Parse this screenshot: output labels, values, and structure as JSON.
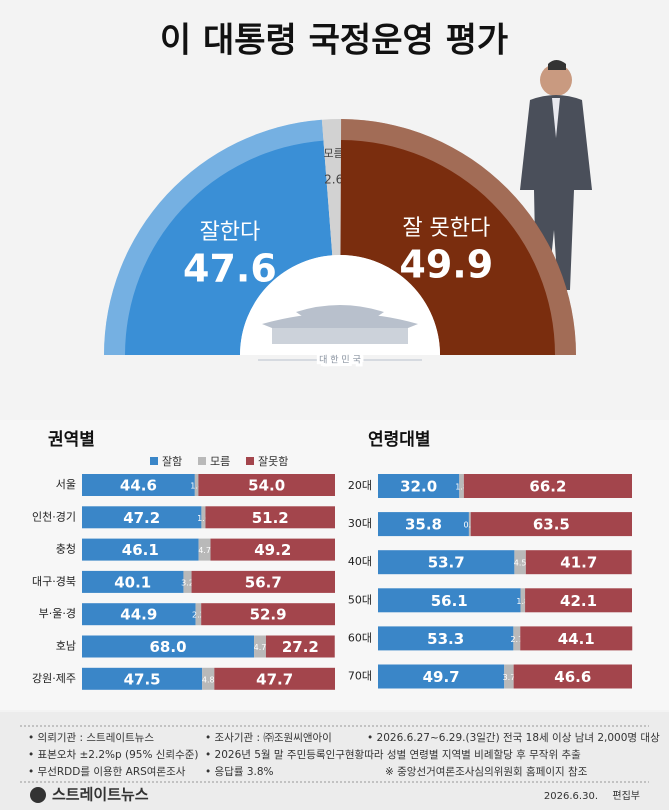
{
  "chart_data": [
    {
      "type": "pie",
      "half": true,
      "title": "이 대통령 국정운영 평가",
      "categories": [
        "잘한다",
        "모름",
        "잘 못한다"
      ],
      "values": [
        47.6,
        2.6,
        49.9
      ],
      "colors": [
        "#3a8fd6",
        "#d2d2d2",
        "#7a2d0e"
      ]
    },
    {
      "type": "bar",
      "orientation": "horizontal",
      "stacked": true,
      "title": "권역별",
      "categories": [
        "서울",
        "인천·경기",
        "충청",
        "대구·경북",
        "부·울·경",
        "호남",
        "강원·제주"
      ],
      "series": [
        {
          "name": "잘함",
          "color": "#3a86c8",
          "values": [
            44.6,
            47.2,
            46.1,
            40.1,
            44.9,
            68.0,
            47.5
          ],
          "value_labels": [
            "44.6",
            "47.2",
            "46.1",
            "40.1",
            "44.9",
            "68.0",
            "47.5"
          ]
        },
        {
          "name": "모름",
          "color": "#b9b9b9",
          "values": [
            1.4,
            1.6,
            4.7,
            3.2,
            2.2,
            4.7,
            4.8
          ]
        },
        {
          "name": "잘못함",
          "color": "#a3454c",
          "values": [
            54.0,
            51.2,
            49.2,
            56.7,
            52.9,
            27.2,
            47.7
          ],
          "value_labels": [
            "54.0",
            "51.2",
            "49.2",
            "56.7",
            "52.9",
            "27.2",
            "47.7"
          ]
        }
      ],
      "xlim": [
        0,
        100
      ]
    },
    {
      "type": "bar",
      "orientation": "horizontal",
      "stacked": true,
      "title": "연령대별",
      "categories": [
        "20대",
        "30대",
        "40대",
        "50대",
        "60대",
        "70대"
      ],
      "series": [
        {
          "color": "#3a86c8",
          "values": [
            32.0,
            35.8,
            53.7,
            56.1,
            53.3,
            49.7
          ],
          "value_labels": [
            "32.0",
            "35.8",
            "53.7",
            "56.1",
            "53.3",
            "49.7"
          ]
        },
        {
          "color": "#b9b9b9",
          "values": [
            1.8,
            0.7,
            4.5,
            1.8,
            2.7,
            3.7
          ]
        },
        {
          "color": "#a3454c",
          "values": [
            66.2,
            63.5,
            41.7,
            42.1,
            44.1,
            46.6
          ],
          "value_labels": [
            "66.2",
            "63.5",
            "41.7",
            "42.1",
            "44.1",
            "46.6"
          ]
        }
      ],
      "xlim": [
        0,
        100
      ]
    }
  ],
  "emblem_label": "대 한 민 국",
  "footer": {
    "notes": [
      [
        "• 의뢰기관 : 스트레이트뉴스",
        "• 조사기관 : ㈜조원씨앤아이",
        "• 2026.6.27~6.29.(3일간) 전국 18세 이상 남녀 2,000명 대상"
      ],
      [
        "• 표본오차 ±2.2%p (95% 신뢰수준)",
        "• 2026년 5월 말 주민등록인구현황따라 성별 연령별 지역별 비례할당 후 무작위 추출"
      ],
      [
        "• 무선RDD를 이용한 ARS여론조사",
        "• 응답률 3.8%",
        "※ 중앙선거여론조사심의위원회 홈페이지 참조"
      ]
    ],
    "publisher": "스트레이트뉴스",
    "date": "2026.6.30.",
    "byline": "편집부"
  }
}
